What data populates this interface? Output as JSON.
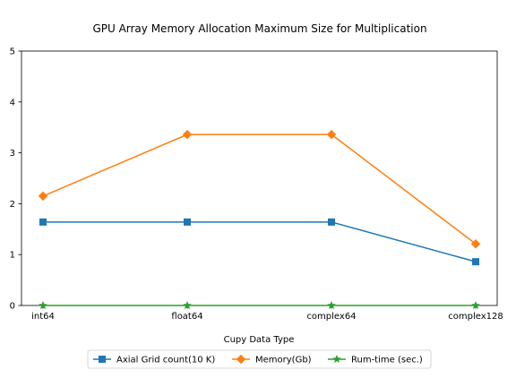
{
  "chart_data": {
    "type": "line",
    "title": "GPU Array Memory Allocation Maximum Size for Multiplication",
    "xlabel": "Cupy Data Type",
    "ylabel": "",
    "categories": [
      "int64",
      "float64",
      "complex64",
      "complex128"
    ],
    "ylim": [
      0,
      5
    ],
    "yticks": [
      "0",
      "1",
      "2",
      "3",
      "4",
      "5"
    ],
    "grid": false,
    "legend_position": "bottom-center",
    "series": [
      {
        "name": "Axial Grid count(10 K)",
        "values": [
          1.64,
          1.64,
          1.64,
          0.86
        ],
        "color": "#1f77b4",
        "marker": "square"
      },
      {
        "name": "Memory(Gb)",
        "values": [
          2.15,
          3.36,
          3.36,
          1.21
        ],
        "color": "#ff7f0e",
        "marker": "diamond"
      },
      {
        "name": "Rum-time (sec.)",
        "values": [
          0,
          0,
          0,
          0
        ],
        "color": "#2ca02c",
        "marker": "star"
      }
    ]
  }
}
